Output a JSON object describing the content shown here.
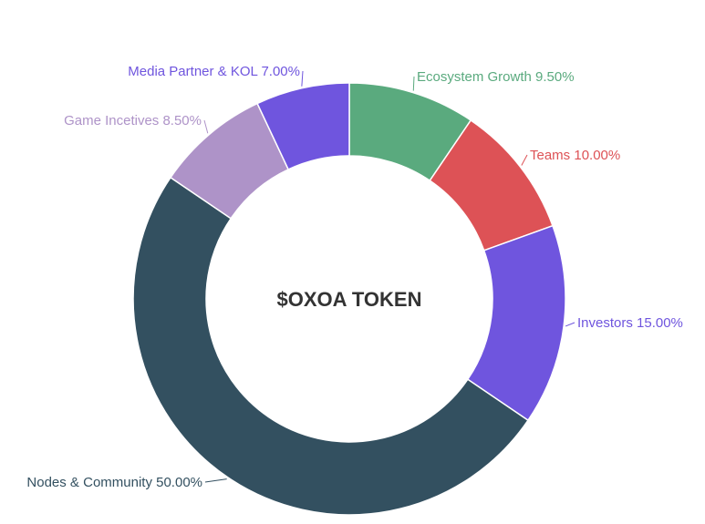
{
  "chart_data": {
    "type": "pie",
    "center_label": "$OXOA TOKEN",
    "slices": [
      {
        "label": "Ecosystem Growth 9.50%",
        "value": 9.5,
        "color": "#5aaa7e"
      },
      {
        "label": "Teams 10.00%",
        "value": 10.0,
        "color": "#dd5256"
      },
      {
        "label": "Investors 15.00%",
        "value": 15.0,
        "color": "#6f55de"
      },
      {
        "label": "Nodes & Community 50.00%",
        "value": 50.0,
        "color": "#335060"
      },
      {
        "label": "Game Incetives 8.50%",
        "value": 8.5,
        "color": "#ae93c8"
      },
      {
        "label": "Media Partner & KOL 7.00%",
        "value": 7.0,
        "color": "#6f55de"
      }
    ]
  }
}
